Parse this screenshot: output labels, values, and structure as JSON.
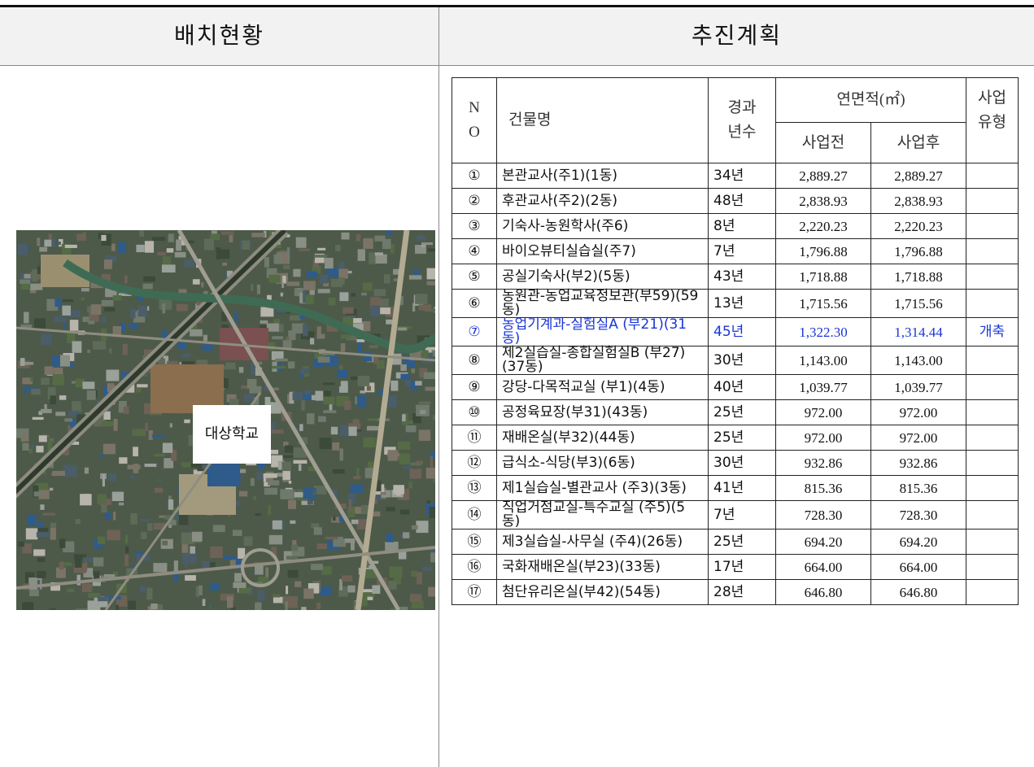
{
  "header": {
    "left": "배치현황",
    "right": "추진계획"
  },
  "map": {
    "label": "대상학교"
  },
  "table": {
    "headers": {
      "no": "N\nO",
      "name": "건물명",
      "years": "경과\n년수",
      "area": "연면적(㎡)",
      "before": "사업전",
      "after": "사업후",
      "type": "사업\n유형"
    },
    "rows": [
      {
        "no": "①",
        "name": "본관교사(주1)(1동)",
        "years": "34년",
        "before": "2,889.27",
        "after": "2,889.27"
      },
      {
        "no": "②",
        "name": "후관교사(주2)(2동)",
        "years": "48년",
        "before": "2,838.93",
        "after": "2,838.93"
      },
      {
        "no": "③",
        "name": "기숙사-농원학사(주6)",
        "years": "8년",
        "before": "2,220.23",
        "after": "2,220.23"
      },
      {
        "no": "④",
        "name": "바이오뷰티실습실(주7)",
        "years": "7년",
        "before": "1,796.88",
        "after": "1,796.88"
      },
      {
        "no": "⑤",
        "name": "공실기숙사(부2)(5동)",
        "years": "43년",
        "before": "1,718.88",
        "after": "1,718.88"
      },
      {
        "no": "⑥",
        "name": "농원관-농업교육정보관(부59)(59동)",
        "years": "13년",
        "before": "1,715.56",
        "after": "1,715.56"
      },
      {
        "no": "⑦",
        "name": "농업기계과-실험실A (부21)(31동)",
        "years": "45년",
        "before": "1,322.30",
        "after": "1,314.44",
        "type": "개축"
      },
      {
        "no": "⑧",
        "name": "제2실습실-종합실험실B (부27)(37동)",
        "years": "30년",
        "before": "1,143.00",
        "after": "1,143.00"
      },
      {
        "no": "⑨",
        "name": "강당-다목적교실 (부1)(4동)",
        "years": "40년",
        "before": "1,039.77",
        "after": "1,039.77"
      },
      {
        "no": "⑩",
        "name": "공정육묘장(부31)(43동)",
        "years": "25년",
        "before": "972.00",
        "after": "972.00"
      },
      {
        "no": "⑪",
        "name": "재배온실(부32)(44동)",
        "years": "25년",
        "before": "972.00",
        "after": "972.00"
      },
      {
        "no": "⑫",
        "name": "급식소-식당(부3)(6동)",
        "years": "30년",
        "before": "932.86",
        "after": "932.86"
      },
      {
        "no": "⑬",
        "name": "제1실습실-별관교사 (주3)(3동)",
        "years": "41년",
        "before": "815.36",
        "after": "815.36"
      },
      {
        "no": "⑭",
        "name": "직업거점교실-특수교실 (주5)(5동)",
        "years": "7년",
        "before": "728.30",
        "after": "728.30"
      },
      {
        "no": "⑮",
        "name": "제3실습실-사무실 (주4)(26동)",
        "years": "25년",
        "before": "694.20",
        "after": "694.20"
      },
      {
        "no": "⑯",
        "name": "국화재배온실(부23)(33동)",
        "years": "17년",
        "before": "664.00",
        "after": "664.00"
      },
      {
        "no": "⑰",
        "name": "첨단유리온실(부42)(54동)",
        "years": "28년",
        "before": "646.80",
        "after": "646.80"
      }
    ],
    "highlight_row": 6
  }
}
